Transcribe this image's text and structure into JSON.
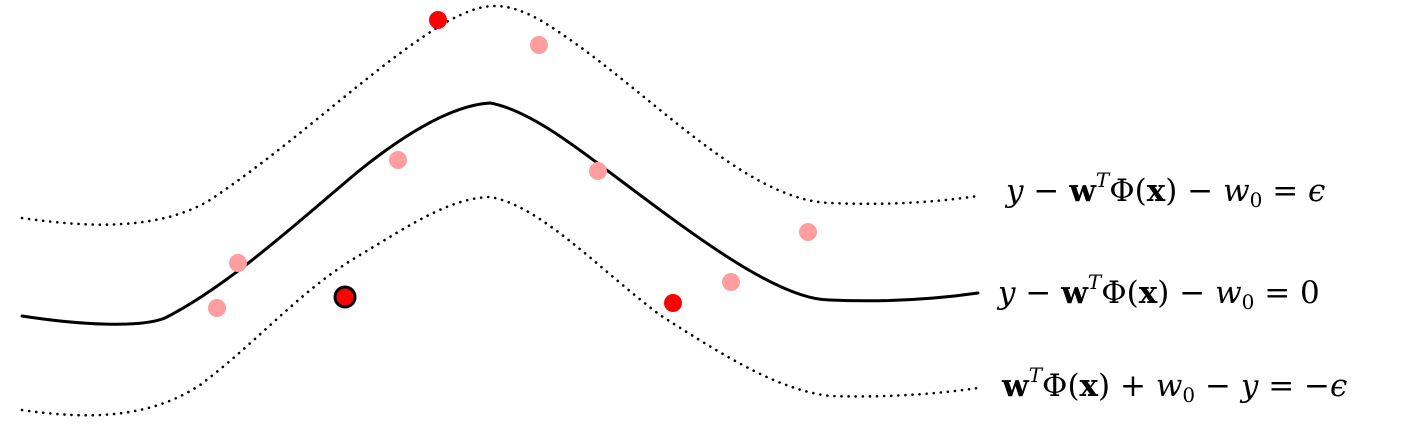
{
  "equations": {
    "upper": {
      "y": "y",
      "minus1": "−",
      "w": "w",
      "T": "T",
      "phi": "Φ(",
      "x": "x",
      "close": ")",
      "minus2": "−",
      "w0": "w",
      "sub0": "0",
      "eq": "=",
      "rhs": "ϵ"
    },
    "middle": {
      "y": "y",
      "minus1": "−",
      "w": "w",
      "T": "T",
      "phi": "Φ(",
      "x": "x",
      "close": ")",
      "minus2": "−",
      "w0": "w",
      "sub0": "0",
      "eq": "=",
      "rhs": "0"
    },
    "lower": {
      "w": "w",
      "T": "T",
      "phi": "Φ(",
      "x": "x",
      "close": ")",
      "plus": "+",
      "w0": "w",
      "sub0": "0",
      "minus": "−",
      "y": "y",
      "eq": "=",
      "rhs": "−ϵ"
    }
  },
  "colors": {
    "curve": "#000000",
    "support_point": "#ff0000",
    "inner_point": "#ff9e9e",
    "highlight_outline": "#000000"
  },
  "points": [
    {
      "kind": "support",
      "highlighted": false
    },
    {
      "kind": "inner",
      "highlighted": false
    },
    {
      "kind": "inner",
      "highlighted": false
    },
    {
      "kind": "inner",
      "highlighted": false
    },
    {
      "kind": "inner",
      "highlighted": false
    },
    {
      "kind": "inner",
      "highlighted": false
    },
    {
      "kind": "inner",
      "highlighted": false
    },
    {
      "kind": "inner",
      "highlighted": false
    },
    {
      "kind": "support",
      "highlighted": true
    },
    {
      "kind": "support",
      "highlighted": false
    }
  ]
}
